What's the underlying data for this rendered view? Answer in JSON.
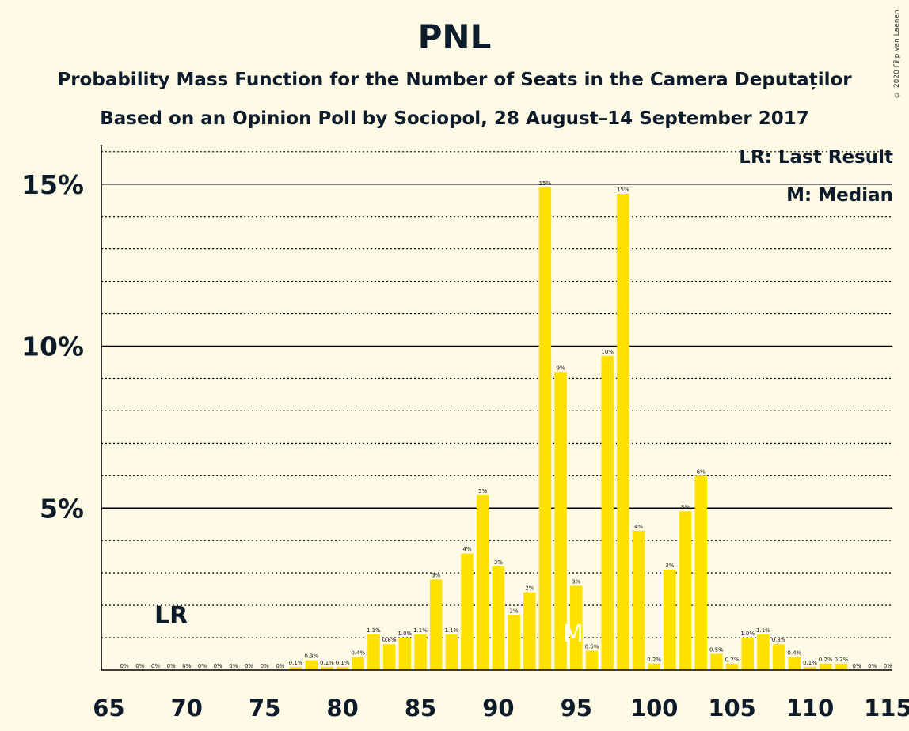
{
  "title": "PNL",
  "subtitle": "Probability Mass Function for the Number of Seats in the Camera Deputaților",
  "subtitle2": "Based on an Opinion Poll by Sociopol, 28 August–14 September 2017",
  "copyright": "© 2020 Filip van Laenen",
  "legend": {
    "last_result": "LR: Last Result",
    "median": "M: Median"
  },
  "colors": {
    "background": "#fefae5",
    "bar": "#ffe100",
    "text": "#0d1b2a"
  },
  "chart_data": {
    "type": "bar",
    "xlim": [
      65,
      115
    ],
    "ylim": [
      0,
      16
    ],
    "x_ticks": [
      65,
      70,
      75,
      80,
      85,
      90,
      95,
      100,
      105,
      110,
      115
    ],
    "y_ticks": [
      {
        "value": 5,
        "label": "5%"
      },
      {
        "value": 10,
        "label": "10%"
      },
      {
        "value": 15,
        "label": "15%"
      }
    ],
    "grid": "dotted every 1%, solid every 5%",
    "last_result": {
      "seat": 69,
      "label": "LR"
    },
    "median": {
      "seat": 95,
      "label": "M"
    },
    "bars": [
      {
        "x": 66,
        "value": 0,
        "label": "0%"
      },
      {
        "x": 67,
        "value": 0,
        "label": "0%"
      },
      {
        "x": 68,
        "value": 0,
        "label": "0%"
      },
      {
        "x": 69,
        "value": 0,
        "label": "0%"
      },
      {
        "x": 70,
        "value": 0,
        "label": "0%"
      },
      {
        "x": 71,
        "value": 0,
        "label": "0%"
      },
      {
        "x": 72,
        "value": 0,
        "label": "0%"
      },
      {
        "x": 73,
        "value": 0,
        "label": "0%"
      },
      {
        "x": 74,
        "value": 0,
        "label": "0%"
      },
      {
        "x": 75,
        "value": 0,
        "label": "0%"
      },
      {
        "x": 76,
        "value": 0,
        "label": "0%"
      },
      {
        "x": 77,
        "value": 0.1,
        "label": "0.1%"
      },
      {
        "x": 78,
        "value": 0.3,
        "label": "0.3%"
      },
      {
        "x": 79,
        "value": 0.1,
        "label": "0.1%"
      },
      {
        "x": 80,
        "value": 0.1,
        "label": "0.1%"
      },
      {
        "x": 81,
        "value": 0.4,
        "label": "0.4%"
      },
      {
        "x": 82,
        "value": 1.1,
        "label": "1.1%"
      },
      {
        "x": 83,
        "value": 0.8,
        "label": "0.8%"
      },
      {
        "x": 84,
        "value": 1.0,
        "label": "1.0%"
      },
      {
        "x": 85,
        "value": 1.1,
        "label": "1.1%"
      },
      {
        "x": 86,
        "value": 2.8,
        "label": "3%"
      },
      {
        "x": 87,
        "value": 1.1,
        "label": "1.1%"
      },
      {
        "x": 88,
        "value": 3.6,
        "label": "4%"
      },
      {
        "x": 89,
        "value": 5.4,
        "label": "5%"
      },
      {
        "x": 90,
        "value": 3.2,
        "label": "3%"
      },
      {
        "x": 91,
        "value": 1.7,
        "label": "2%"
      },
      {
        "x": 92,
        "value": 2.4,
        "label": "2%"
      },
      {
        "x": 93,
        "value": 14.9,
        "label": "15%"
      },
      {
        "x": 94,
        "value": 9.2,
        "label": "9%"
      },
      {
        "x": 95,
        "value": 2.6,
        "label": "3%"
      },
      {
        "x": 96,
        "value": 0.6,
        "label": "0.6%"
      },
      {
        "x": 97,
        "value": 9.7,
        "label": "10%"
      },
      {
        "x": 98,
        "value": 14.7,
        "label": "15%"
      },
      {
        "x": 99,
        "value": 4.3,
        "label": "4%"
      },
      {
        "x": 100,
        "value": 0.2,
        "label": "0.2%"
      },
      {
        "x": 101,
        "value": 3.1,
        "label": "3%"
      },
      {
        "x": 102,
        "value": 4.9,
        "label": "5%"
      },
      {
        "x": 103,
        "value": 6.0,
        "label": "6%"
      },
      {
        "x": 104,
        "value": 0.5,
        "label": "0.5%"
      },
      {
        "x": 105,
        "value": 0.2,
        "label": "0.2%"
      },
      {
        "x": 106,
        "value": 1.0,
        "label": "1.0%"
      },
      {
        "x": 107,
        "value": 1.1,
        "label": "1.1%"
      },
      {
        "x": 108,
        "value": 0.8,
        "label": "0.8%"
      },
      {
        "x": 109,
        "value": 0.4,
        "label": "0.4%"
      },
      {
        "x": 110,
        "value": 0.1,
        "label": "0.1%"
      },
      {
        "x": 111,
        "value": 0.2,
        "label": "0.2%"
      },
      {
        "x": 112,
        "value": 0.2,
        "label": "0.2%"
      },
      {
        "x": 113,
        "value": 0,
        "label": "0%"
      },
      {
        "x": 114,
        "value": 0,
        "label": "0%"
      },
      {
        "x": 115,
        "value": 0,
        "label": "0%"
      }
    ]
  }
}
